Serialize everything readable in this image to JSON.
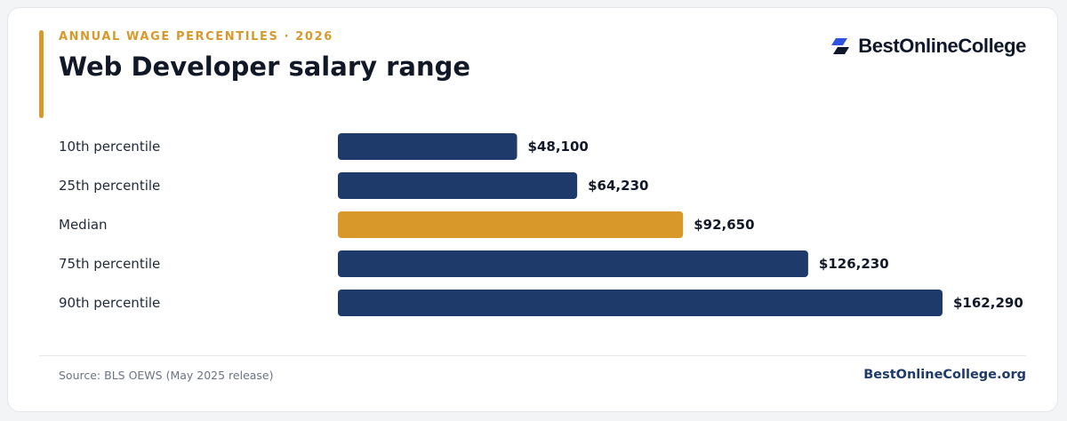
{
  "header": {
    "eyebrow": "ANNUAL WAGE PERCENTILES · 2026",
    "title": "Web Developer salary range"
  },
  "brand": {
    "name": "BestOnlineCollege",
    "icon": "stacked-parallelogram-logo-icon"
  },
  "footer": {
    "source": "Source: BLS OEWS (May 2025 release)",
    "site": "BestOnlineCollege.org"
  },
  "colors": {
    "bar": "#1e3a6b",
    "highlight": "#d9992a",
    "accent": "#d9992a",
    "title": "#111827",
    "label": "#1f2937",
    "muted": "#6b7280",
    "brand_dark": "#0f172a",
    "brand_blue": "#2f55e0",
    "footer_brand": "#1e3a6b"
  },
  "chart_data": {
    "type": "bar",
    "orientation": "horizontal",
    "title": "Web Developer salary range",
    "categories": [
      "10th percentile",
      "25th percentile",
      "Median",
      "75th percentile",
      "90th percentile"
    ],
    "values": [
      48100,
      64230,
      92650,
      126230,
      162290
    ],
    "value_labels": [
      "$48,100",
      "$64,230",
      "$92,650",
      "$126,230",
      "$162,290"
    ],
    "highlight_category": "Median",
    "xlim": [
      0,
      162290
    ],
    "grid": false,
    "legend": "none"
  }
}
